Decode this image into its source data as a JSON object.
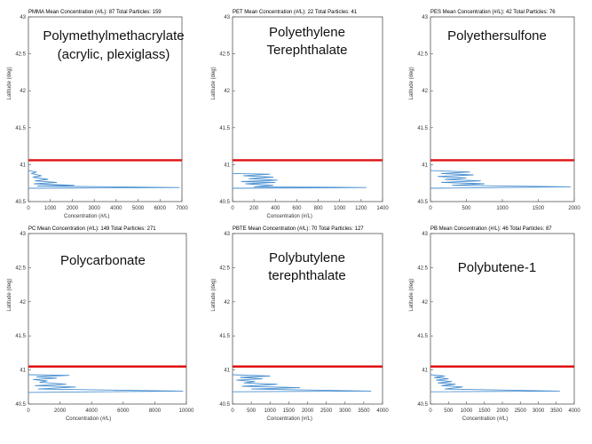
{
  "chart_data": [
    {
      "type": "line",
      "title": "PMMA   Mean Concentration (#/L): 87   Total Particles: 159",
      "name_lines": [
        "Polymethylmethacrylate",
        "(acrylic, plexiglass)"
      ],
      "xlabel": "Concentration (#/L)",
      "ylabel": "Latitude (deg)",
      "xlim": [
        0,
        7000
      ],
      "ylim": [
        40.5,
        43
      ],
      "xticks": [
        "0",
        "1000",
        "2000",
        "3000",
        "4000",
        "5000",
        "6000",
        "7000"
      ],
      "yticks": [
        "40.5",
        "41",
        "41.5",
        "42",
        "42.5",
        "43"
      ],
      "threshold_latitude": 41.06,
      "series": [
        {
          "x": [
            0,
            350,
            150,
            600,
            200,
            900,
            300,
            1300,
            250,
            2100,
            400,
            6900,
            0
          ],
          "y": [
            40.92,
            40.9,
            40.88,
            40.85,
            40.83,
            40.8,
            40.78,
            40.76,
            40.74,
            40.72,
            40.71,
            40.69,
            40.68
          ]
        }
      ]
    },
    {
      "type": "line",
      "title": "PET   Mean Concentration (#/L): 22   Total Particles: 41",
      "name_lines": [
        "Polyethylene",
        "Terephthalate"
      ],
      "xlabel": "Concentration (#/L)",
      "ylabel": "Latitude (deg)",
      "xlim": [
        0,
        1400
      ],
      "ylim": [
        40.5,
        43
      ],
      "xticks": [
        "0",
        "200",
        "400",
        "600",
        "800",
        "1000",
        "1200",
        "1400"
      ],
      "yticks": [
        "40.5",
        "41",
        "41.5",
        "42",
        "42.5",
        "43"
      ],
      "threshold_latitude": 41.06,
      "series": [
        {
          "x": [
            0,
            350,
            100,
            380,
            150,
            420,
            80,
            400,
            120,
            380,
            200,
            1250,
            0
          ],
          "y": [
            40.88,
            40.87,
            40.85,
            40.83,
            40.81,
            40.79,
            40.77,
            40.76,
            40.74,
            40.72,
            40.7,
            40.69,
            40.68
          ]
        }
      ]
    },
    {
      "type": "line",
      "title": "PES   Mean Concentration (#/L): 42   Total Particles: 76",
      "name_lines": [
        "Polyethersulfone"
      ],
      "xlabel": "",
      "ylabel": "Latitude (deg)",
      "xlim": [
        0,
        2000
      ],
      "ylim": [
        40.5,
        43
      ],
      "xticks": [
        "0",
        "500",
        "1000",
        "1500",
        "2000"
      ],
      "yticks": [
        "40.5",
        "41",
        "41.5",
        "42",
        "42.5",
        "43"
      ],
      "threshold_latitude": 41.06,
      "series": [
        {
          "x": [
            0,
            550,
            150,
            600,
            100,
            500,
            200,
            700,
            150,
            750,
            300,
            1950,
            0
          ],
          "y": [
            40.92,
            40.9,
            40.88,
            40.86,
            40.84,
            40.82,
            40.8,
            40.78,
            40.76,
            40.74,
            40.72,
            40.7,
            40.68
          ]
        }
      ]
    },
    {
      "type": "line",
      "title": "PC   Mean Concentration (#/L): 149   Total Particles: 271",
      "name_lines": [
        "Polycarbonate"
      ],
      "xlabel": "Concentration (#/L)",
      "ylabel": "Latitude (deg)",
      "xlim": [
        0,
        10000
      ],
      "ylim": [
        40.5,
        43
      ],
      "xticks": [
        "0",
        "2000",
        "4000",
        "6000",
        "8000",
        "10000"
      ],
      "yticks": [
        "40.5",
        "41",
        "41.5",
        "42",
        "42.5",
        "43"
      ],
      "threshold_latitude": 41.05,
      "series": [
        {
          "x": [
            0,
            2600,
            500,
            1800,
            300,
            1200,
            700,
            2400,
            400,
            3000,
            600,
            9800,
            0
          ],
          "y": [
            40.93,
            40.92,
            40.9,
            40.88,
            40.86,
            40.84,
            40.82,
            40.79,
            40.77,
            40.75,
            40.72,
            40.69,
            40.67
          ]
        }
      ]
    },
    {
      "type": "line",
      "title": "PBTE   Mean Concentration (#/L): 70   Total Particles: 127",
      "name_lines": [
        "Polybutylene",
        "terephthalate"
      ],
      "xlabel": "Concentration (#/L)",
      "ylabel": "Latitude (deg)",
      "xlim": [
        0,
        4000
      ],
      "ylim": [
        40.5,
        43
      ],
      "xticks": [
        "0",
        "500",
        "1000",
        "1500",
        "2000",
        "2500",
        "3000",
        "3500",
        "4000"
      ],
      "yticks": [
        "40.5",
        "41",
        "41.5",
        "42",
        "42.5",
        "43"
      ],
      "threshold_latitude": 41.05,
      "series": [
        {
          "x": [
            0,
            1000,
            200,
            800,
            100,
            600,
            300,
            1200,
            250,
            1800,
            500,
            3700,
            0
          ],
          "y": [
            40.93,
            40.91,
            40.89,
            40.87,
            40.85,
            40.83,
            40.81,
            40.79,
            40.76,
            40.74,
            40.72,
            40.69,
            40.68
          ]
        }
      ]
    },
    {
      "type": "line",
      "title": "PB   Mean Concentration (#/L): 46   Total Particles: 87",
      "name_lines": [
        "Polybutene-1"
      ],
      "xlabel": "Concentration (#/L)",
      "ylabel": "Latitude (deg)",
      "xlim": [
        0,
        4000
      ],
      "ylim": [
        40.5,
        43
      ],
      "xticks": [
        "0",
        "500",
        "1000",
        "1500",
        "2000",
        "2500",
        "3000",
        "3500",
        "4000"
      ],
      "yticks": [
        "40.5",
        "41",
        "41.5",
        "42",
        "42.5",
        "43"
      ],
      "threshold_latitude": 41.05,
      "series": [
        {
          "x": [
            0,
            400,
            100,
            500,
            150,
            600,
            200,
            700,
            300,
            900,
            400,
            3600,
            0
          ],
          "y": [
            40.93,
            40.91,
            40.89,
            40.87,
            40.85,
            40.83,
            40.81,
            40.79,
            40.77,
            40.75,
            40.72,
            40.69,
            40.68
          ]
        }
      ]
    }
  ],
  "colors": {
    "line": "#4a90d0",
    "threshold": "#e01010",
    "axis": "#555555"
  }
}
